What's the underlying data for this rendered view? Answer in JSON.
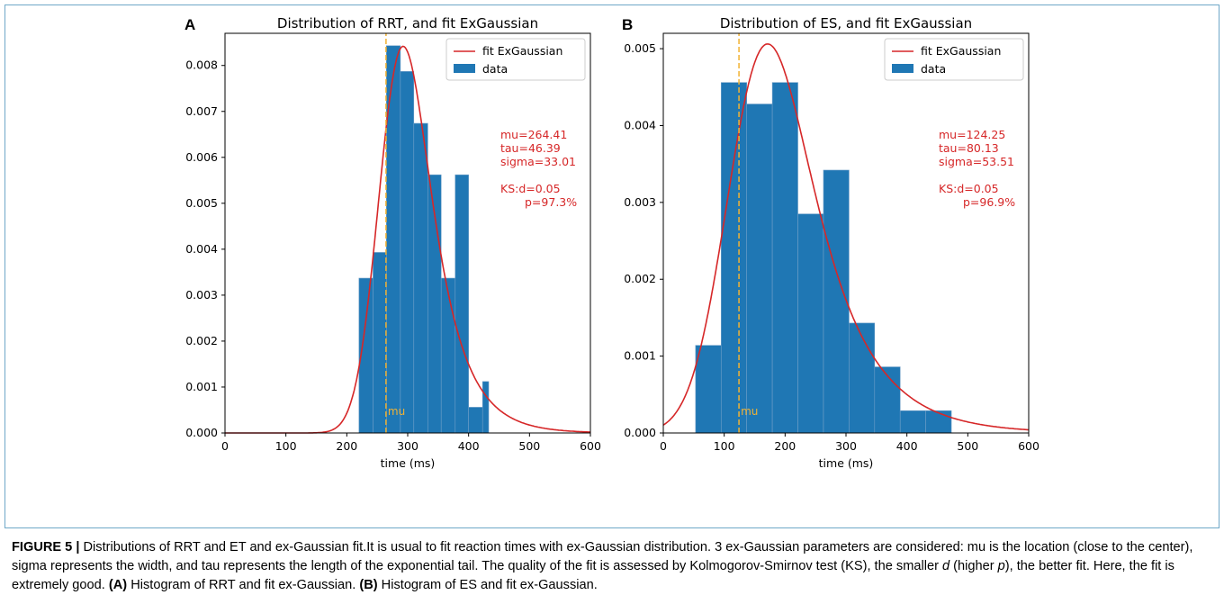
{
  "colors": {
    "bar": "#1f77b4",
    "fit_line": "#d62728",
    "mu_line": "#f2b233",
    "param_text": "#d62728",
    "frame": "#6fa8c8"
  },
  "chart_data": [
    {
      "type": "bar",
      "panel": "A",
      "title": "Distribution of RRT, and fit ExGaussian",
      "xlabel": "time (ms)",
      "ylabel": "",
      "xlim": [
        0,
        600
      ],
      "ylim": [
        0,
        0.0087
      ],
      "x_ticks": [
        0,
        100,
        200,
        300,
        400,
        500,
        600
      ],
      "y_ticks": [
        0,
        0.001,
        0.002,
        0.003,
        0.004,
        0.005,
        0.006,
        0.007,
        0.008
      ],
      "x_tick_labels": [
        "0",
        "100",
        "200",
        "300",
        "400",
        "500",
        "600"
      ],
      "y_tick_labels": [
        "0.000",
        "0.001",
        "0.002",
        "0.003",
        "0.004",
        "0.005",
        "0.006",
        "0.007",
        "0.008"
      ],
      "legend": {
        "position": "top-right",
        "entries": [
          "fit ExGaussian",
          "data"
        ]
      },
      "bin_edges": [
        220,
        243,
        265,
        288,
        310,
        333,
        355,
        378,
        400,
        423,
        433
      ],
      "values": [
        0.00337,
        0.00393,
        0.00843,
        0.00787,
        0.00674,
        0.00562,
        0.00337,
        0.00562,
        0.00056,
        0.00112
      ],
      "fit": {
        "name": "fit ExGaussian",
        "mu": 264.41,
        "tau": 46.39,
        "sigma": 33.01
      },
      "params_text": [
        "mu=264.41",
        "tau=46.39",
        "sigma=33.01",
        "",
        "KS:d=0.05",
        "p=97.3%"
      ],
      "mu_line": {
        "x": 264.41,
        "label": "mu"
      }
    },
    {
      "type": "bar",
      "panel": "B",
      "title": "Distribution of ES, and fit ExGaussian",
      "xlabel": "time (ms)",
      "ylabel": "",
      "xlim": [
        0,
        600
      ],
      "ylim": [
        0,
        0.0052
      ],
      "x_ticks": [
        0,
        100,
        200,
        300,
        400,
        500,
        600
      ],
      "y_ticks": [
        0,
        0.001,
        0.002,
        0.003,
        0.004,
        0.005
      ],
      "x_tick_labels": [
        "0",
        "100",
        "200",
        "300",
        "400",
        "500",
        "600"
      ],
      "y_tick_labels": [
        "0.000",
        "0.001",
        "0.002",
        "0.003",
        "0.004",
        "0.005"
      ],
      "legend": {
        "position": "top-right",
        "entries": [
          "fit ExGaussian",
          "data"
        ]
      },
      "bin_edges": [
        53,
        95,
        137,
        179,
        221,
        263,
        305,
        347,
        389,
        431,
        473
      ],
      "values": [
        0.00114,
        0.00456,
        0.00428,
        0.00456,
        0.00285,
        0.00342,
        0.00143,
        0.00086,
        0.00029,
        0.00029
      ],
      "fit": {
        "name": "fit ExGaussian",
        "mu": 124.25,
        "tau": 80.13,
        "sigma": 53.51
      },
      "params_text": [
        "mu=124.25",
        "tau=80.13",
        "sigma=53.51",
        "",
        "KS:d=0.05",
        "p=96.9%"
      ],
      "mu_line": {
        "x": 124.25,
        "label": "mu"
      }
    }
  ],
  "caption": {
    "label": "FIGURE 5 |",
    "text1": " Distributions of RRT and ET and ex-Gaussian fit.It is usual to fit reaction times with ex-Gaussian distribution. 3 ex-Gaussian parameters are considered: mu is the location (close to the center), sigma represents the width, and tau represents the length of the exponential tail. The quality of the fit is assessed by Kolmogorov-Smirnov test (KS), the smaller ",
    "d": "d",
    "text2": " (higher ",
    "p": "p",
    "text3": "), the better fit. Here, the fit is extremely good. ",
    "a_label": "(A)",
    "a_text": " Histogram of RRT and fit ex-Gaussian. ",
    "b_label": "(B)",
    "b_text": " Histogram of ES and fit ex-Gaussian."
  }
}
